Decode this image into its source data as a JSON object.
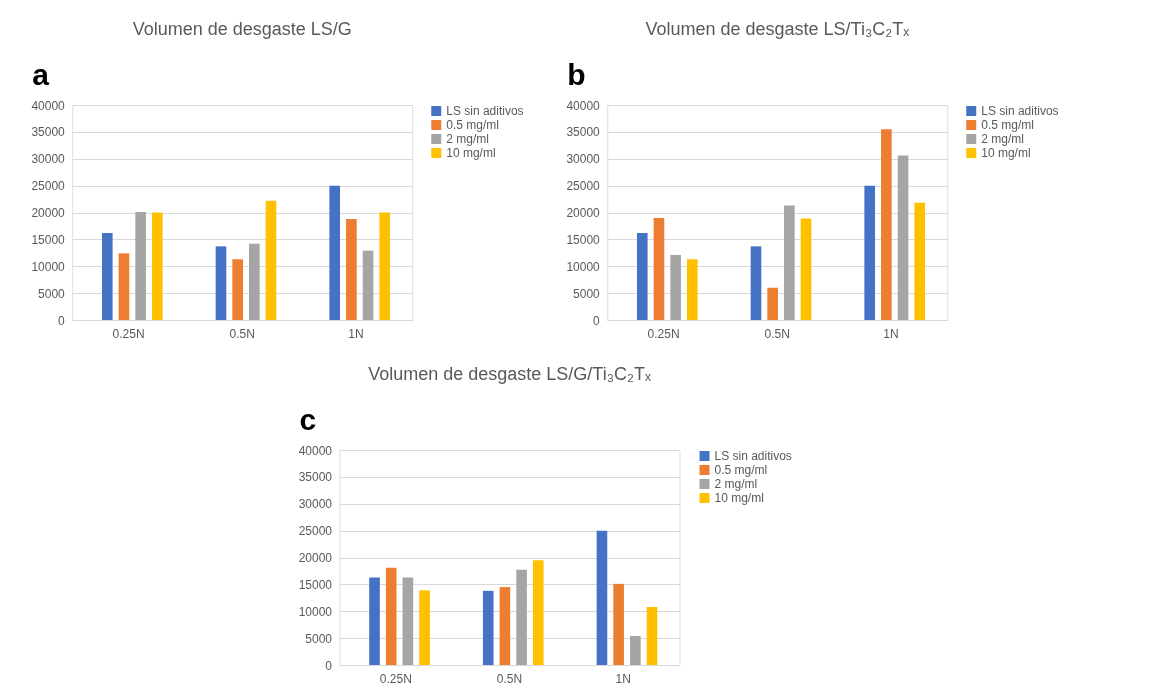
{
  "chart_data": [
    {
      "type": "bar",
      "title": "Volumen de desgaste LS/G",
      "annotations": [
        "a"
      ],
      "categories": [
        "0.25N",
        "0.5N",
        "1N"
      ],
      "ylim": [
        0,
        40000
      ],
      "yticks": [
        0,
        5000,
        10000,
        15000,
        20000,
        25000,
        30000,
        35000,
        40000
      ],
      "grid": "y",
      "legend": "right",
      "series": [
        {
          "name": "LS sin aditivos",
          "color": "#4472c4",
          "values": [
            16200,
            13700,
            25000
          ]
        },
        {
          "name": "0.5 mg/ml",
          "color": "#ed7d31",
          "values": [
            12400,
            11300,
            18800
          ]
        },
        {
          "name": "2 mg/ml",
          "color": "#a5a5a5",
          "values": [
            20100,
            14200,
            12900
          ]
        },
        {
          "name": "10 mg/ml",
          "color": "#ffc000",
          "values": [
            20000,
            22200,
            20000
          ]
        }
      ]
    },
    {
      "type": "bar",
      "title": "Volumen de desgaste LS/Ti₃C₂Tₓ",
      "annotations": [
        "b"
      ],
      "categories": [
        "0.25N",
        "0.5N",
        "1N"
      ],
      "ylim": [
        0,
        40000
      ],
      "yticks": [
        0,
        5000,
        10000,
        15000,
        20000,
        25000,
        30000,
        35000,
        40000
      ],
      "grid": "y",
      "legend": "right",
      "series": [
        {
          "name": "LS sin aditivos",
          "color": "#4472c4",
          "values": [
            16200,
            13700,
            25000
          ]
        },
        {
          "name": "0.5 mg/ml",
          "color": "#ed7d31",
          "values": [
            19000,
            6000,
            35500
          ]
        },
        {
          "name": "2 mg/ml",
          "color": "#a5a5a5",
          "values": [
            12100,
            21300,
            30600
          ]
        },
        {
          "name": "10 mg/ml",
          "color": "#ffc000",
          "values": [
            11300,
            18900,
            21800
          ]
        }
      ]
    },
    {
      "type": "bar",
      "title": "Volumen de desgaste LS/G/Ti₃C₂Tₓ",
      "annotations": [
        "c"
      ],
      "categories": [
        "0.25N",
        "0.5N",
        "1N"
      ],
      "ylim": [
        0,
        40000
      ],
      "yticks": [
        0,
        5000,
        10000,
        15000,
        20000,
        25000,
        30000,
        35000,
        40000
      ],
      "grid": "y",
      "legend": "right",
      "series": [
        {
          "name": "LS sin aditivos",
          "color": "#4472c4",
          "values": [
            16300,
            13800,
            25000
          ]
        },
        {
          "name": "0.5 mg/ml",
          "color": "#ed7d31",
          "values": [
            18100,
            14500,
            15100
          ]
        },
        {
          "name": "2 mg/ml",
          "color": "#a5a5a5",
          "values": [
            16300,
            17700,
            5400
          ]
        },
        {
          "name": "10 mg/ml",
          "color": "#ffc000",
          "values": [
            13900,
            19500,
            10800
          ]
        }
      ]
    }
  ]
}
